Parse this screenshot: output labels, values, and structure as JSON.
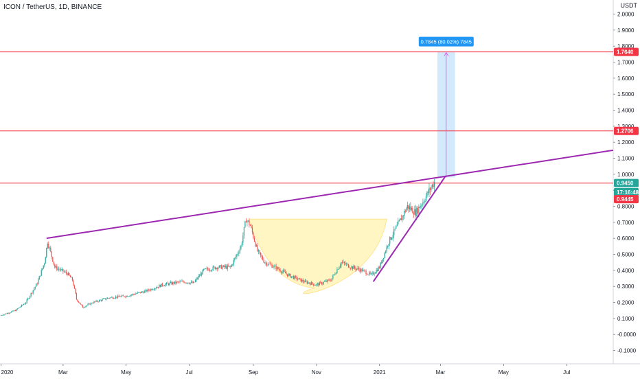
{
  "header": {
    "symbol_line": "ICON / TetherUS, 1D, BINANCE",
    "currency": "USDT"
  },
  "chart_data": {
    "type": "candlestick",
    "title": "ICON / TetherUS, 1D, BINANCE",
    "xlabel": "",
    "ylabel": "",
    "ylim": [
      -0.15,
      2.03
    ],
    "y_ticks": [
      2.0,
      1.9,
      1.8,
      1.7,
      1.6,
      1.5,
      1.4,
      1.3,
      1.2,
      1.1,
      1.0,
      0.9,
      0.8,
      0.7,
      0.6,
      0.5,
      0.4,
      0.3,
      0.2,
      0.1,
      0.0,
      -0.1
    ],
    "y_tick_labels": [
      "2.0000",
      "1.9000",
      "1.8000",
      "1.7000",
      "1.6000",
      "1.5000",
      "1.4000",
      "1.3000",
      "1.2000",
      "1.1000",
      "1.0000",
      "0.9000",
      "0.8000",
      "0.7000",
      "0.6000",
      "0.5000",
      "0.4000",
      "0.3000",
      "0.2000",
      "0.1000",
      "-0.0000",
      "-0.1000"
    ],
    "x_range": [
      "2019-12-31",
      "2021-08-15"
    ],
    "x_ticks": [
      {
        "date": "2020-01-01",
        "label": "2020"
      },
      {
        "date": "2020-03-01",
        "label": "Mar"
      },
      {
        "date": "2020-05-01",
        "label": "May"
      },
      {
        "date": "2020-07-01",
        "label": "Jul"
      },
      {
        "date": "2020-09-01",
        "label": "Sep"
      },
      {
        "date": "2020-11-01",
        "label": "Nov"
      },
      {
        "date": "2021-01-01",
        "label": "2021"
      },
      {
        "date": "2021-03-01",
        "label": "Mar"
      },
      {
        "date": "2021-05-01",
        "label": "May"
      },
      {
        "date": "2021-07-01",
        "label": "Jul"
      }
    ],
    "grid": false,
    "price_path": [
      [
        "2020-01-01",
        0.12
      ],
      [
        "2020-01-15",
        0.15
      ],
      [
        "2020-01-25",
        0.2
      ],
      [
        "2020-02-05",
        0.32
      ],
      [
        "2020-02-12",
        0.45
      ],
      [
        "2020-02-15",
        0.58
      ],
      [
        "2020-02-22",
        0.42
      ],
      [
        "2020-03-05",
        0.38
      ],
      [
        "2020-03-10",
        0.34
      ],
      [
        "2020-03-14",
        0.22
      ],
      [
        "2020-03-20",
        0.17
      ],
      [
        "2020-03-30",
        0.2
      ],
      [
        "2020-04-15",
        0.23
      ],
      [
        "2020-05-01",
        0.24
      ],
      [
        "2020-05-20",
        0.27
      ],
      [
        "2020-06-05",
        0.31
      ],
      [
        "2020-06-25",
        0.33
      ],
      [
        "2020-07-05",
        0.32
      ],
      [
        "2020-07-15",
        0.4
      ],
      [
        "2020-07-28",
        0.42
      ],
      [
        "2020-08-10",
        0.42
      ],
      [
        "2020-08-20",
        0.55
      ],
      [
        "2020-08-25",
        0.72
      ],
      [
        "2020-08-29",
        0.68
      ],
      [
        "2020-09-05",
        0.52
      ],
      [
        "2020-09-12",
        0.45
      ],
      [
        "2020-09-22",
        0.42
      ],
      [
        "2020-10-05",
        0.37
      ],
      [
        "2020-10-20",
        0.33
      ],
      [
        "2020-11-01",
        0.31
      ],
      [
        "2020-11-15",
        0.34
      ],
      [
        "2020-11-25",
        0.45
      ],
      [
        "2020-12-05",
        0.42
      ],
      [
        "2020-12-15",
        0.4
      ],
      [
        "2020-12-24",
        0.37
      ],
      [
        "2021-01-01",
        0.42
      ],
      [
        "2021-01-10",
        0.58
      ],
      [
        "2021-01-20",
        0.7
      ],
      [
        "2021-01-28",
        0.8
      ],
      [
        "2021-02-05",
        0.76
      ],
      [
        "2021-02-12",
        0.83
      ],
      [
        "2021-02-20",
        0.92
      ],
      [
        "2021-02-23",
        0.95
      ]
    ],
    "horizontal_lines": [
      {
        "price": 1.764,
        "label": "1.7640"
      },
      {
        "price": 1.2706,
        "label": "1.2706"
      },
      {
        "price": 0.945,
        "label": "0.9450"
      }
    ],
    "price_labels": [
      {
        "price": 0.945,
        "label": "0.9450",
        "color": "#26a69a"
      },
      {
        "price": 0.8882,
        "label": "17:16:48",
        "color": "#26a69a"
      },
      {
        "price": 0.8442,
        "label": "0.9445",
        "color": "#f23645"
      }
    ],
    "trendlines": [
      {
        "from": [
          "2020-02-14",
          0.6
        ],
        "to": [
          "2021-08-15",
          1.15
        ],
        "color": "#9c27b0"
      },
      {
        "from": [
          "2020-12-26",
          0.33
        ],
        "to": [
          "2021-03-06",
          0.99
        ],
        "color": "#9c27b0"
      }
    ],
    "cup_pattern": {
      "start": [
        "2020-08-28",
        0.72
      ],
      "bottom": [
        "2020-10-30",
        0.29
      ],
      "end": [
        "2021-01-08",
        0.72
      ],
      "color": "#fff3b0"
    },
    "measure": {
      "date_from": "2021-02-26",
      "date_to": "2021-03-15",
      "from_price": 0.98,
      "to_price": 1.764,
      "label": "0.7845 (80.02%) 7845"
    }
  },
  "colors": {
    "up": "#26a69a",
    "down": "#ef5350",
    "hline": "#f23645",
    "trend": "#9c27b0",
    "measure_fill": "#bbdefb",
    "measure_label": "#2196f3"
  }
}
